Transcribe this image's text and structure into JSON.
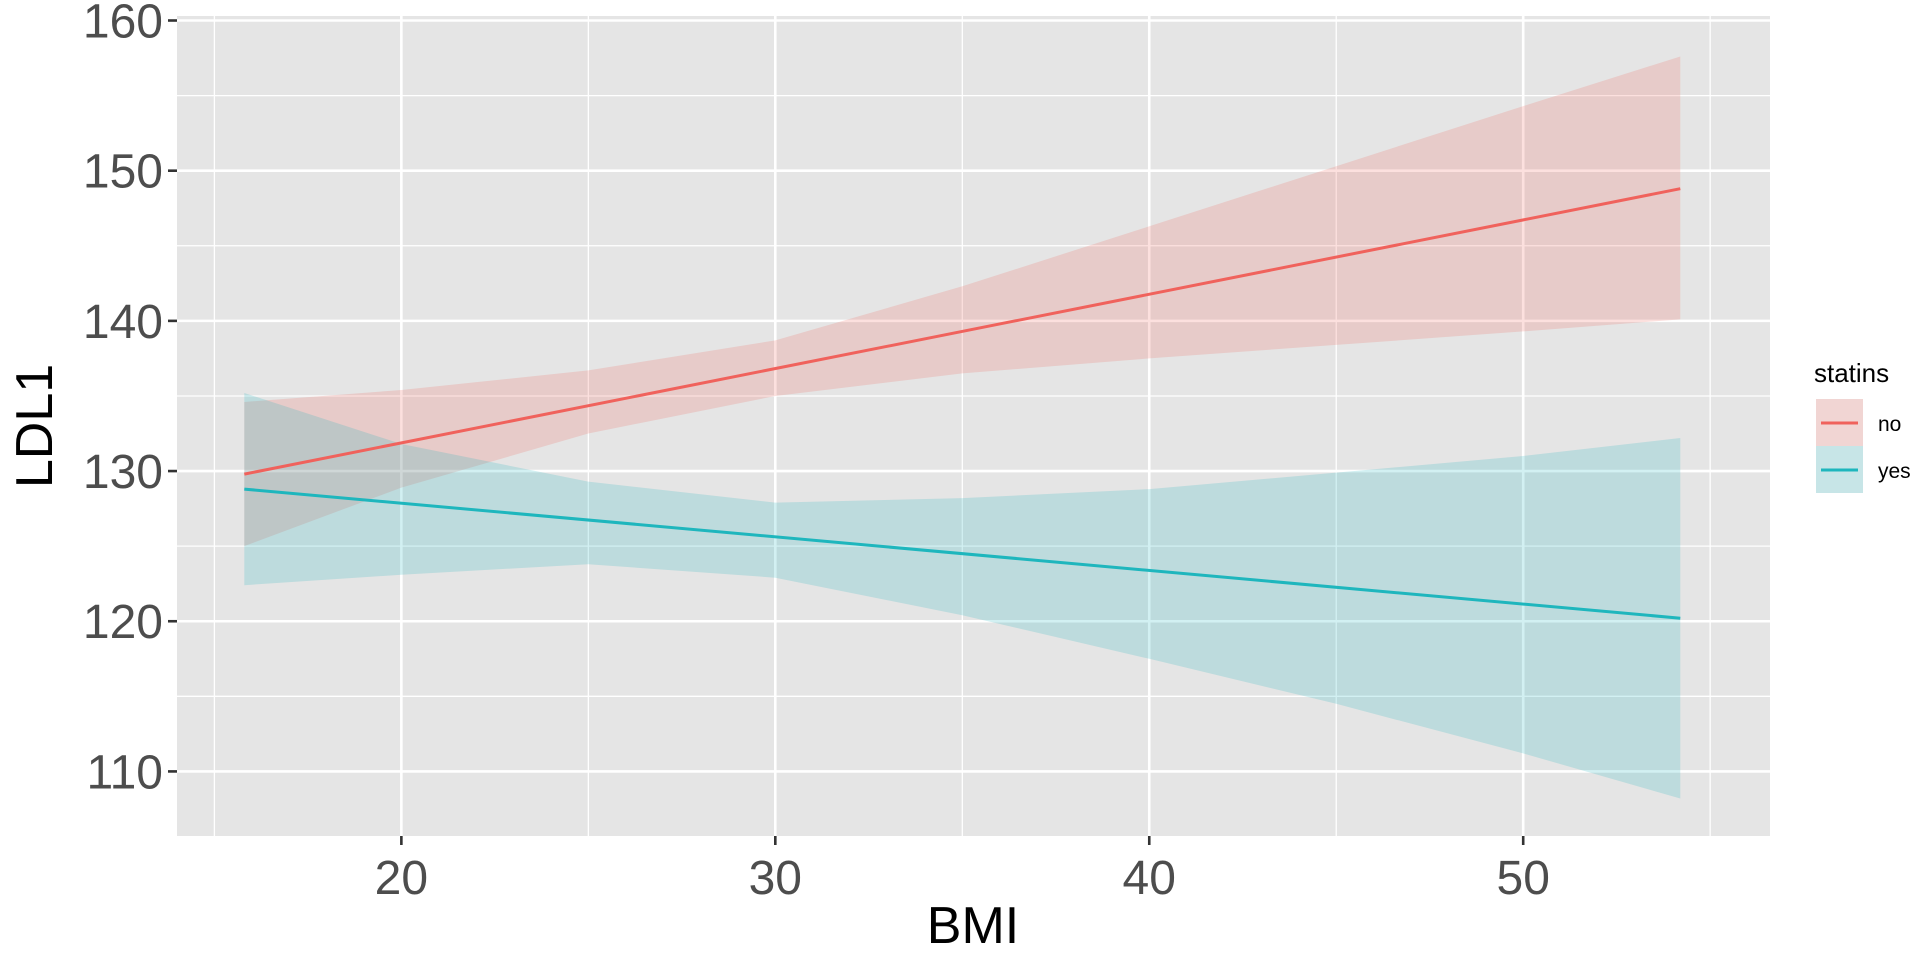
{
  "chart_data": {
    "type": "line",
    "xlabel": "BMI",
    "ylabel": "LDL1",
    "xlim": [
      14,
      56.6
    ],
    "ylim": [
      105.7,
      160.3
    ],
    "x_ticks": [
      20,
      30,
      40,
      50
    ],
    "x_tick_labels": [
      "20",
      "30",
      "40",
      "50"
    ],
    "y_ticks": [
      110,
      120,
      130,
      140,
      150,
      160
    ],
    "y_tick_labels": [
      "110",
      "120",
      "130",
      "140",
      "150",
      "160"
    ],
    "grid": true,
    "legend": {
      "title": "statins",
      "placement": "right"
    },
    "colors": {
      "panel": "#e5e5e5",
      "grid": "#ffffff",
      "no": "#f0625c",
      "yes": "#1eb6bd"
    },
    "series": [
      {
        "name": "no",
        "x": [
          15.8,
          54.2
        ],
        "y": [
          129.8,
          148.8
        ],
        "band_x": [
          15.8,
          20,
          25,
          30,
          35,
          40,
          45,
          50,
          54.2
        ],
        "band_lower": [
          125.0,
          128.9,
          132.5,
          135.0,
          136.5,
          137.5,
          138.4,
          139.3,
          140.1
        ],
        "band_upper": [
          134.6,
          135.4,
          136.7,
          138.7,
          142.3,
          146.3,
          150.3,
          154.3,
          157.6
        ]
      },
      {
        "name": "yes",
        "x": [
          15.8,
          54.2
        ],
        "y": [
          128.8,
          120.2
        ],
        "band_x": [
          15.8,
          20,
          25,
          30,
          35,
          40,
          45,
          50,
          54.2
        ],
        "band_lower": [
          122.4,
          123.1,
          123.8,
          122.9,
          120.4,
          117.5,
          114.5,
          111.2,
          108.2
        ],
        "band_upper": [
          135.2,
          131.8,
          129.3,
          127.9,
          128.2,
          128.8,
          129.9,
          131.0,
          132.2
        ]
      }
    ]
  }
}
